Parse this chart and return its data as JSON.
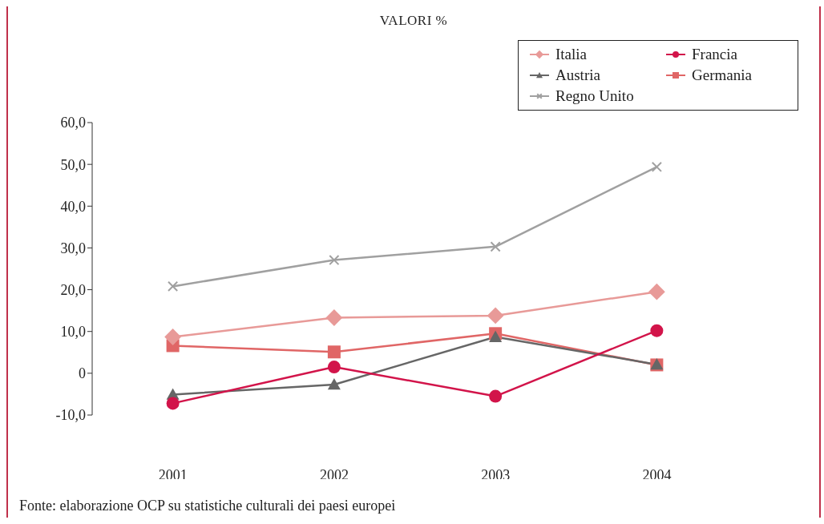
{
  "chart_data": {
    "type": "line",
    "title": "VALORI %",
    "categories": [
      "2001",
      "2002",
      "2003",
      "2004"
    ],
    "series": [
      {
        "name": "Italia",
        "color": "#e89a98",
        "marker": "diamond",
        "values": [
          8.7,
          13.3,
          13.8,
          19.5
        ]
      },
      {
        "name": "Francia",
        "color": "#d2144a",
        "marker": "circle",
        "values": [
          -7.2,
          1.5,
          -5.5,
          10.2
        ]
      },
      {
        "name": "Austria",
        "color": "#666666",
        "marker": "triangle",
        "values": [
          -5.1,
          -2.7,
          8.7,
          2.1
        ]
      },
      {
        "name": "Germania",
        "color": "#e06666",
        "marker": "square",
        "values": [
          6.6,
          5.1,
          9.5,
          2.0
        ]
      },
      {
        "name": "Regno Unito",
        "color": "#a0a0a0",
        "marker": "cross",
        "values": [
          20.8,
          27.1,
          30.3,
          49.4
        ]
      }
    ],
    "ylim": [
      -10,
      60
    ],
    "yticks": [
      {
        "value": -10,
        "label": "-10,0"
      },
      0,
      {
        "value": 10,
        "label": "10,0"
      },
      {
        "value": 20,
        "label": "20,0"
      },
      {
        "value": 30,
        "label": "30,0"
      },
      {
        "value": 40,
        "label": "40,0"
      },
      {
        "value": 50,
        "label": "50,0"
      },
      {
        "value": 60,
        "label": "60,0"
      }
    ],
    "legend": "top right",
    "line_style": "solid",
    "annotations": [
      "Fonte: elaborazione OCP su statistiche culturali dei paesi europei"
    ]
  }
}
